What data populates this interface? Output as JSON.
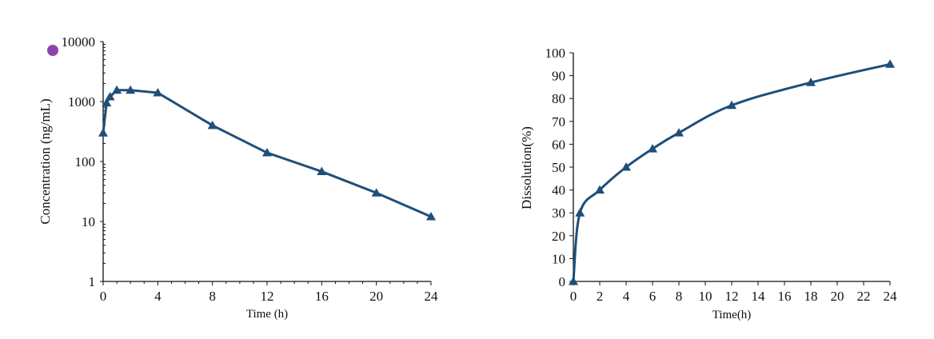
{
  "colors": {
    "series": "#1f4e79",
    "marker_dot": "#8e44ad",
    "axis": "#111111"
  },
  "chart_data": [
    {
      "type": "line",
      "xlabel": "Time (h)",
      "ylabel": "Concentration (ng/mL)",
      "yscale": "log",
      "xlim": [
        0,
        24
      ],
      "ylim": [
        1,
        10000
      ],
      "xticks": [
        "0",
        "4",
        "8",
        "12",
        "16",
        "20",
        "24"
      ],
      "yticks": [
        "1",
        "10",
        "100",
        "1000",
        "10000"
      ],
      "grid": false,
      "marker": "triangle",
      "x": [
        0,
        0.25,
        0.5,
        1,
        2,
        4,
        8,
        12,
        16,
        20,
        24
      ],
      "y": [
        300,
        950,
        1200,
        1550,
        1550,
        1400,
        400,
        140,
        68,
        30,
        12
      ]
    },
    {
      "type": "line",
      "xlabel": "Time(h)",
      "ylabel": "Dissolution(%)",
      "xlim": [
        0,
        24
      ],
      "ylim": [
        0,
        100
      ],
      "xticks": [
        "0",
        "2",
        "4",
        "6",
        "8",
        "10",
        "12",
        "14",
        "16",
        "18",
        "20",
        "22",
        "24"
      ],
      "yticks": [
        "0",
        "10",
        "20",
        "30",
        "40",
        "50",
        "60",
        "70",
        "80",
        "90",
        "100"
      ],
      "grid": false,
      "marker": "triangle",
      "smooth": true,
      "x": [
        0,
        0.5,
        2,
        4,
        6,
        8,
        12,
        18,
        24
      ],
      "y": [
        0,
        30,
        40,
        50,
        58,
        65,
        77,
        87,
        95
      ]
    }
  ]
}
